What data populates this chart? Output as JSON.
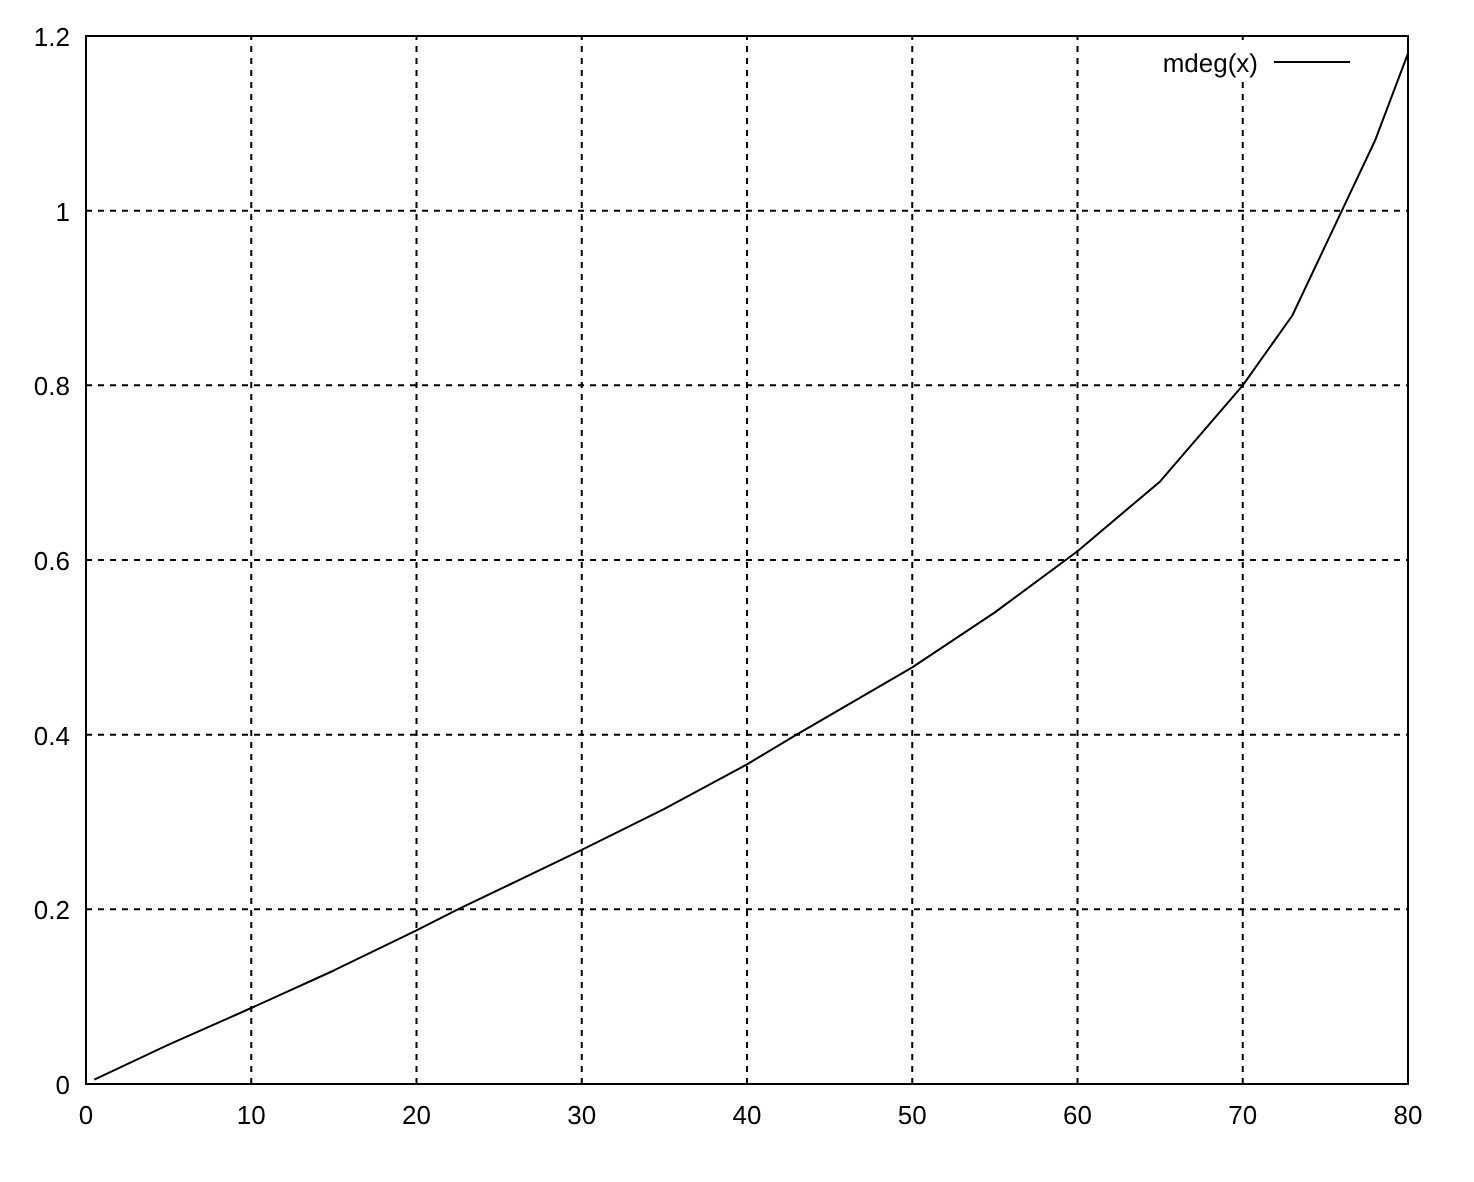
{
  "chart_data": {
    "type": "line",
    "x": [
      0.5,
      5,
      10,
      15,
      20,
      22.5,
      30,
      35,
      40,
      43,
      50,
      55,
      60,
      65,
      70,
      73,
      76,
      78,
      80
    ],
    "series": [
      {
        "name": "mdeg(x)",
        "color": "#000000",
        "values": [
          0.005,
          0.045,
          0.087,
          0.13,
          0.176,
          0.2,
          0.268,
          0.315,
          0.366,
          0.4,
          0.477,
          0.54,
          0.61,
          0.69,
          0.8,
          0.88,
          1.0,
          1.08,
          1.18
        ]
      }
    ],
    "xlim": [
      0,
      80
    ],
    "xticks": [
      0,
      10,
      20,
      30,
      40,
      50,
      60,
      70,
      80
    ],
    "ylim": [
      0,
      1.2
    ],
    "yticks": [
      0,
      0.2,
      0.4,
      0.6,
      0.8,
      1,
      1.2
    ],
    "grid": true,
    "legend": "top right",
    "line_style": "solid",
    "marker": "none"
  }
}
